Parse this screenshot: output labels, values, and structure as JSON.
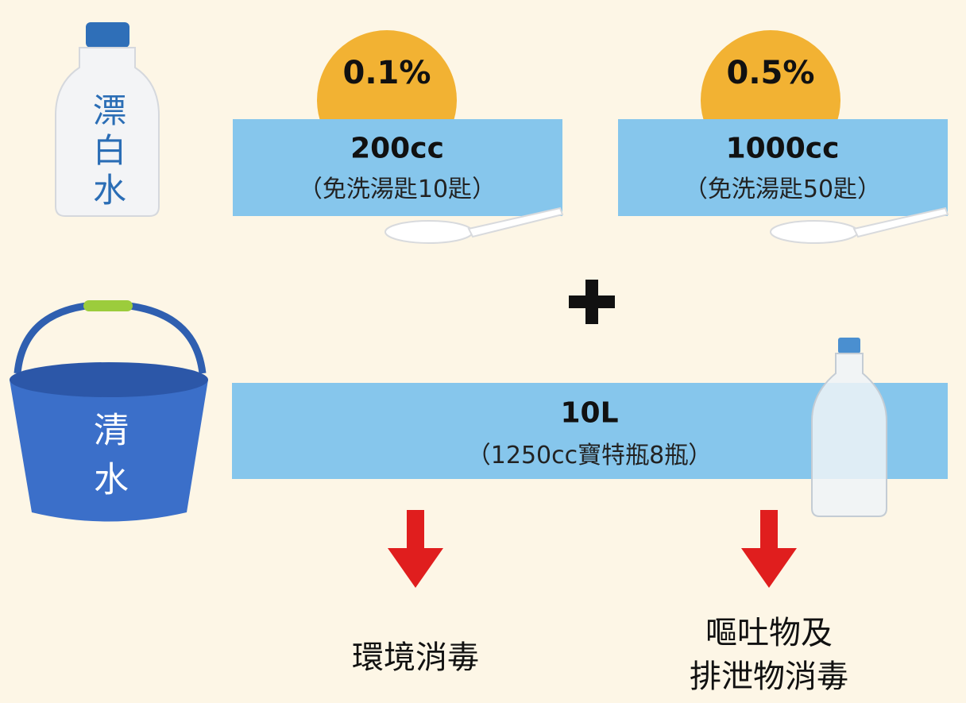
{
  "bleach": {
    "label": "漂白水"
  },
  "water": {
    "label": "清水",
    "amount": "10L",
    "note": "（1250cc寶特瓶8瓶）"
  },
  "options": [
    {
      "concentration": "0.1%",
      "amount": "200cc",
      "note": "（免洗湯匙10匙）",
      "use": [
        "環境消毒"
      ]
    },
    {
      "concentration": "0.5%",
      "amount": "1000cc",
      "note": "（免洗湯匙50匙）",
      "use": [
        "嘔吐物及",
        "排泄物消毒"
      ]
    }
  ]
}
